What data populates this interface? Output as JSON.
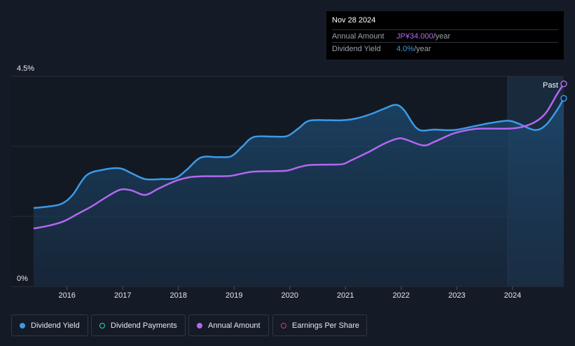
{
  "tooltip": {
    "date": "Nov 28 2024",
    "rows": [
      {
        "label": "Annual Amount",
        "value": "JP¥34.000",
        "unit": "/year"
      },
      {
        "label": "Dividend Yield",
        "value": "4.0%",
        "unit": "/year"
      }
    ]
  },
  "past_label": "Past",
  "legend": [
    {
      "label": "Dividend Yield",
      "color": "#3a9be8",
      "style": "filled"
    },
    {
      "label": "Dividend Payments",
      "color": "#3ed0b4",
      "style": "ring"
    },
    {
      "label": "Annual Amount",
      "color": "#b367f0",
      "style": "filled"
    },
    {
      "label": "Earnings Per Share",
      "color": "#d43a86",
      "style": "ring"
    }
  ],
  "chart_data": {
    "type": "line",
    "y_tick_labels": [
      "4.5%",
      "0%"
    ],
    "ylim": [
      0,
      4.5
    ],
    "xlim": [
      2015.4,
      2024.92
    ],
    "x_ticks": [
      2016,
      2017,
      2018,
      2019,
      2020,
      2021,
      2022,
      2023,
      2024
    ],
    "x_tick_labels": [
      "2016",
      "2017",
      "2018",
      "2019",
      "2020",
      "2021",
      "2022",
      "2023",
      "2024"
    ],
    "forecast_start": 2023.92,
    "grid": true,
    "series": [
      {
        "name": "Dividend Yield",
        "color": "#3a9be8",
        "area": true,
        "x": [
          2015.4,
          2015.65,
          2015.9,
          2016.1,
          2016.35,
          2016.65,
          2016.95,
          2017.15,
          2017.4,
          2017.7,
          2017.95,
          2018.15,
          2018.4,
          2018.7,
          2018.95,
          2019.15,
          2019.35,
          2019.7,
          2019.95,
          2020.15,
          2020.35,
          2020.7,
          2020.95,
          2021.2,
          2021.45,
          2021.7,
          2021.9,
          2022.05,
          2022.3,
          2022.6,
          2022.95,
          2023.3,
          2023.6,
          2023.92,
          2024.1,
          2024.4,
          2024.6,
          2024.8,
          2024.92
        ],
        "y": [
          1.68,
          1.71,
          1.77,
          1.96,
          2.38,
          2.5,
          2.53,
          2.43,
          2.3,
          2.3,
          2.32,
          2.5,
          2.76,
          2.77,
          2.79,
          3.0,
          3.2,
          3.21,
          3.22,
          3.38,
          3.55,
          3.56,
          3.56,
          3.6,
          3.69,
          3.81,
          3.89,
          3.78,
          3.37,
          3.36,
          3.35,
          3.43,
          3.5,
          3.55,
          3.49,
          3.35,
          3.46,
          3.78,
          4.03
        ]
      },
      {
        "name": "Annual Amount",
        "color": "#b367f0",
        "area": false,
        "x": [
          2015.4,
          2015.7,
          2015.95,
          2016.2,
          2016.45,
          2016.7,
          2016.95,
          2017.15,
          2017.4,
          2017.65,
          2017.95,
          2018.2,
          2018.45,
          2018.75,
          2018.95,
          2019.15,
          2019.35,
          2019.7,
          2019.95,
          2020.15,
          2020.35,
          2020.7,
          2020.95,
          2021.1,
          2021.4,
          2021.7,
          2021.95,
          2022.1,
          2022.4,
          2022.6,
          2022.95,
          2023.3,
          2023.6,
          2023.92,
          2024.15,
          2024.4,
          2024.6,
          2024.8,
          2024.92
        ],
        "y": [
          1.24,
          1.31,
          1.4,
          1.56,
          1.72,
          1.91,
          2.07,
          2.06,
          1.96,
          2.1,
          2.26,
          2.34,
          2.36,
          2.36,
          2.37,
          2.42,
          2.46,
          2.47,
          2.48,
          2.55,
          2.6,
          2.61,
          2.62,
          2.7,
          2.87,
          3.06,
          3.17,
          3.14,
          3.02,
          3.1,
          3.28,
          3.37,
          3.38,
          3.38,
          3.41,
          3.52,
          3.72,
          4.12,
          4.34
        ]
      }
    ]
  }
}
